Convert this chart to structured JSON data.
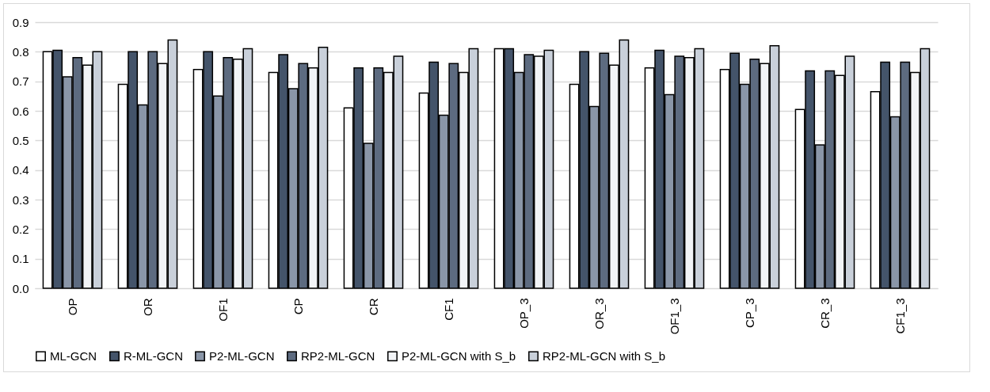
{
  "chart_data": {
    "type": "bar",
    "categories": [
      "OP",
      "OR",
      "OF1",
      "CP",
      "CR",
      "CF1",
      "OP_3",
      "OR_3",
      "OF1_3",
      "CP_3",
      "CR_3",
      "CF1_3"
    ],
    "series": [
      {
        "name": "ML-GCN",
        "color": "#ffffff",
        "values": [
          0.8,
          0.69,
          0.74,
          0.73,
          0.61,
          0.66,
          0.81,
          0.69,
          0.745,
          0.74,
          0.605,
          0.665
        ]
      },
      {
        "name": "R-ML-GCN",
        "color": "#44546a",
        "values": [
          0.805,
          0.8,
          0.8,
          0.79,
          0.745,
          0.765,
          0.81,
          0.8,
          0.805,
          0.795,
          0.735,
          0.765
        ]
      },
      {
        "name": "P2-ML-GCN",
        "color": "#8a96a8",
        "values": [
          0.715,
          0.62,
          0.65,
          0.675,
          0.49,
          0.585,
          0.73,
          0.615,
          0.655,
          0.69,
          0.485,
          0.58
        ]
      },
      {
        "name": "RP2-ML-GCN",
        "color": "#5d6b80",
        "values": [
          0.78,
          0.8,
          0.78,
          0.76,
          0.745,
          0.76,
          0.79,
          0.795,
          0.785,
          0.775,
          0.735,
          0.765
        ]
      },
      {
        "name": "P2-ML-GCN with S_b",
        "color": "#f2f4f7",
        "values": [
          0.755,
          0.76,
          0.775,
          0.745,
          0.73,
          0.73,
          0.785,
          0.755,
          0.78,
          0.76,
          0.72,
          0.73
        ]
      },
      {
        "name": "RP2-ML-GCN with S_b",
        "color": "#c9d0da",
        "values": [
          0.8,
          0.84,
          0.81,
          0.815,
          0.785,
          0.81,
          0.805,
          0.84,
          0.81,
          0.82,
          0.785,
          0.81
        ]
      }
    ],
    "ylim": [
      0,
      0.9
    ],
    "yticks": [
      {
        "value": 0,
        "label": "0.0"
      },
      {
        "value": 0.1,
        "label": "0.1"
      },
      {
        "value": 0.2,
        "label": "0.2"
      },
      {
        "value": 0.3,
        "label": "0.3"
      },
      {
        "value": 0.4,
        "label": "0.4"
      },
      {
        "value": 0.5,
        "label": "0.5"
      },
      {
        "value": 0.6,
        "label": "0.6"
      },
      {
        "value": 0.7,
        "label": "0.7"
      },
      {
        "value": 0.8,
        "label": "0.8"
      },
      {
        "value": 0.9,
        "label": "0.9"
      }
    ],
    "grid": "y",
    "legend": "bottom"
  }
}
